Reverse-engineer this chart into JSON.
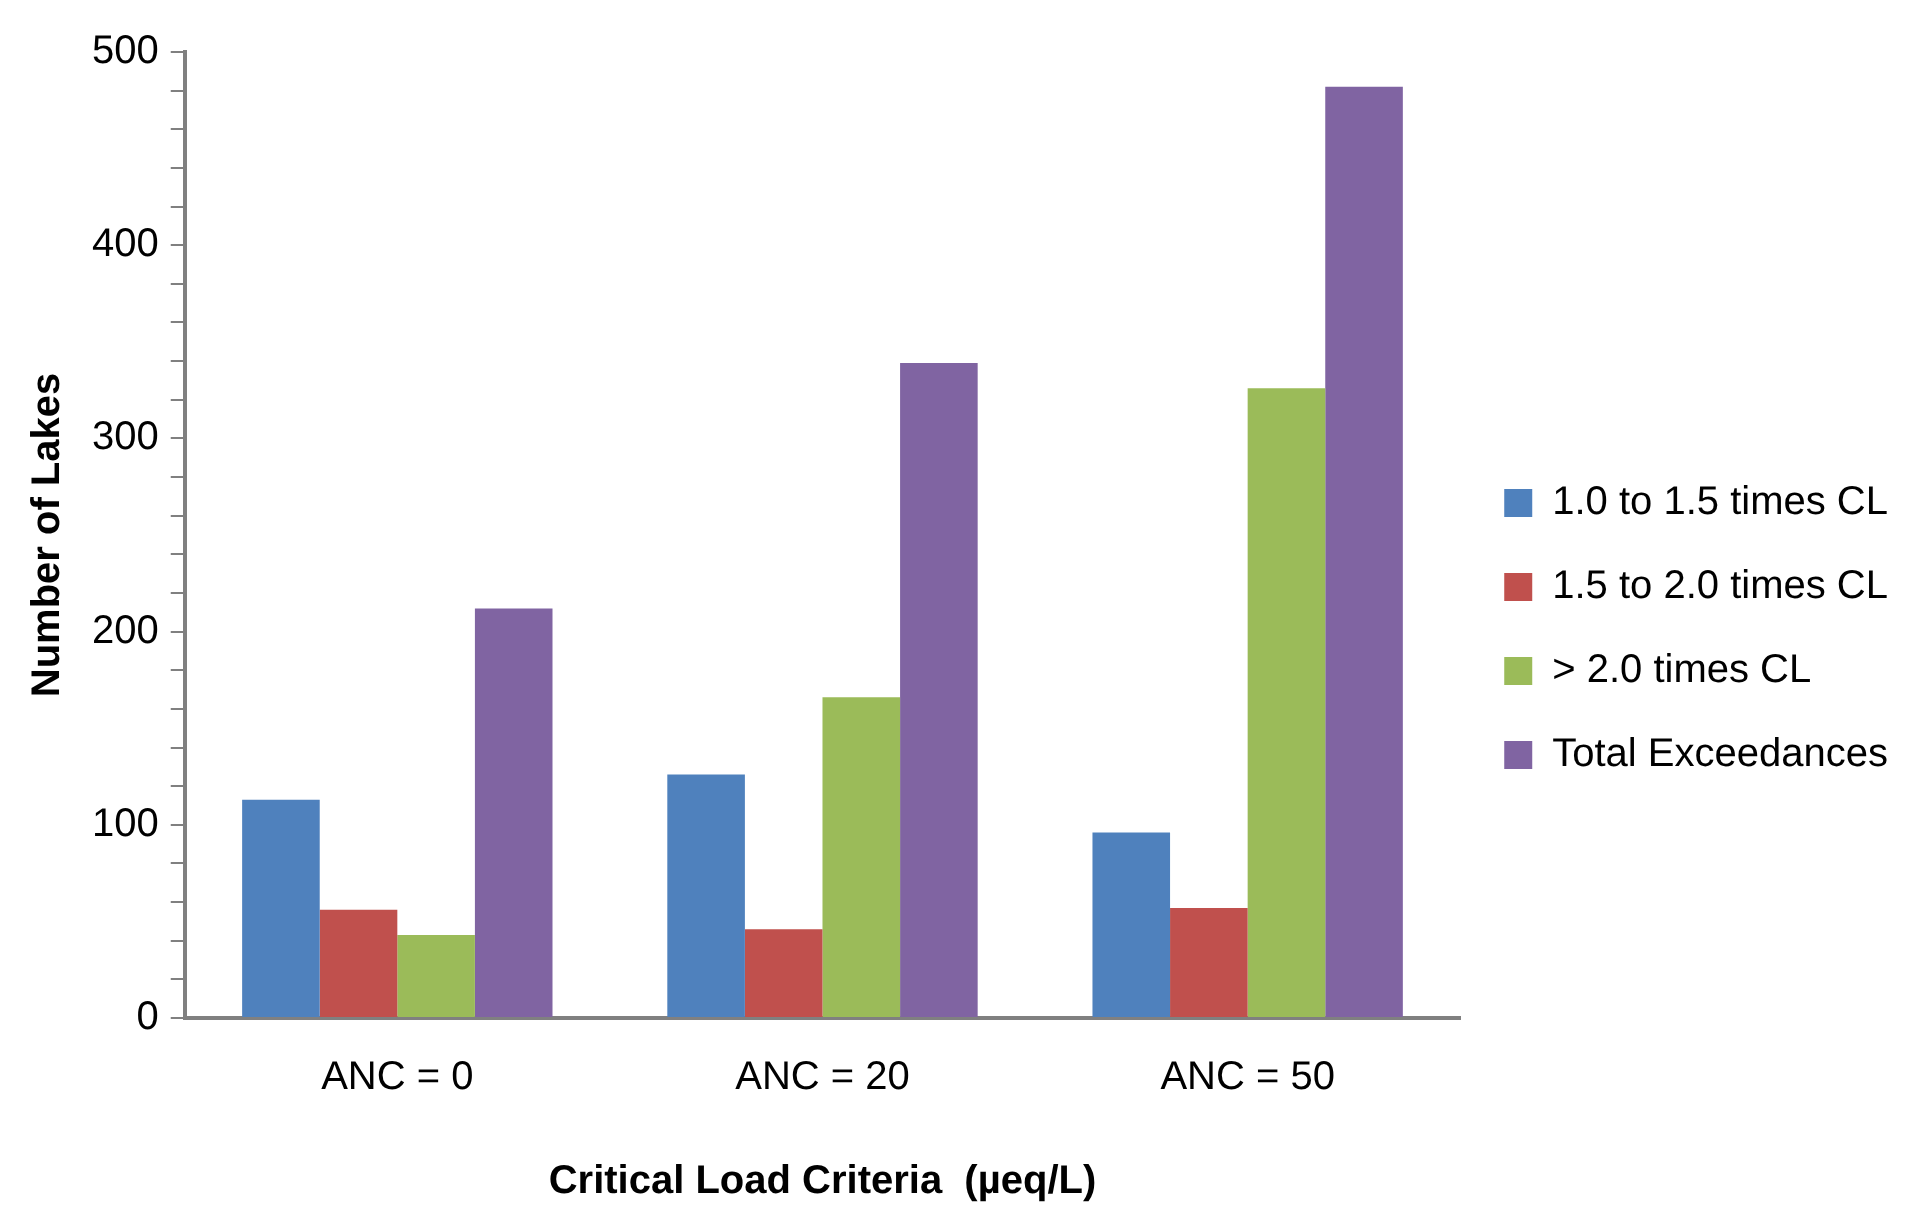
{
  "chart_data": {
    "type": "bar",
    "xlabel": "Critical Load Criteria  (µeq/L)",
    "ylabel": "Number of Lakes",
    "categories": [
      "ANC = 0",
      "ANC = 20",
      "ANC = 50"
    ],
    "series": [
      {
        "name": "1.0 to 1.5 times CL",
        "color": "#4f81bd",
        "values": [
          113,
          126,
          96
        ]
      },
      {
        "name": "1.5 to 2.0 times CL",
        "color": "#c0504d",
        "values": [
          56,
          46,
          57
        ]
      },
      {
        "name": "> 2.0 times CL",
        "color": "#9bbb59",
        "values": [
          43,
          166,
          326
        ]
      },
      {
        "name": "Total Exceedances",
        "color": "#8064a2",
        "values": [
          212,
          339,
          482
        ]
      }
    ],
    "ylim": [
      0,
      500
    ],
    "yticks": [
      0,
      {
        "value": 20,
        "label": null
      },
      {
        "value": 40,
        "label": null
      },
      {
        "value": 60,
        "label": null
      },
      {
        "value": 80,
        "label": null
      },
      100,
      {
        "value": 120,
        "label": null
      },
      {
        "value": 140,
        "label": null
      },
      {
        "value": 160,
        "label": null
      },
      {
        "value": 180,
        "label": null
      },
      200,
      {
        "value": 220,
        "label": null
      },
      {
        "value": 240,
        "label": null
      },
      {
        "value": 260,
        "label": null
      },
      {
        "value": 280,
        "label": null
      },
      300,
      {
        "value": 320,
        "label": null
      },
      {
        "value": 340,
        "label": null
      },
      {
        "value": 360,
        "label": null
      },
      {
        "value": 380,
        "label": null
      },
      400,
      {
        "value": 420,
        "label": null
      },
      {
        "value": 440,
        "label": null
      },
      {
        "value": 460,
        "label": null
      },
      {
        "value": 480,
        "label": null
      },
      500
    ],
    "grid": false,
    "legend": "right"
  }
}
